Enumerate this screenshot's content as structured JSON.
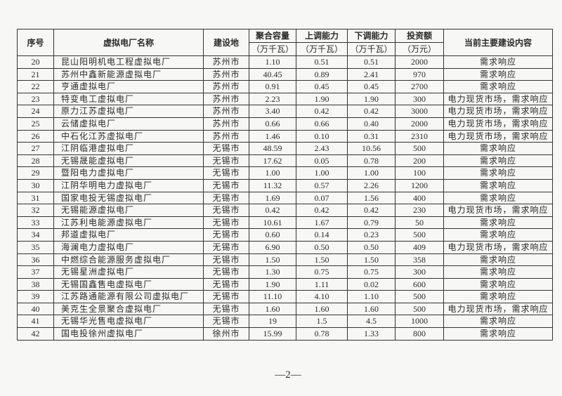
{
  "table": {
    "headers": {
      "no": "序号",
      "name": "虚拟电厂名称",
      "location": "建设地",
      "capacity": "聚合容量",
      "up": "上调能力",
      "down": "下调能力",
      "investment": "投资额",
      "content": "当前主要建设内容",
      "unit_mw": "（万千瓦）",
      "unit_yuan": "（万元）"
    },
    "rows": [
      [
        "20",
        "昆山阳明机电工程虚拟电厂",
        "苏州市",
        "1.10",
        "0.51",
        "0.51",
        "2000",
        "需求响应"
      ],
      [
        "21",
        "苏州中鑫新能源虚拟电厂",
        "苏州市",
        "40.45",
        "0.89",
        "2.41",
        "970",
        "需求响应"
      ],
      [
        "22",
        "亨通虚拟电厂",
        "苏州市",
        "0.91",
        "0.45",
        "0.45",
        "2700",
        "需求响应"
      ],
      [
        "23",
        "特变电工虚拟电厂",
        "苏州市",
        "2.23",
        "1.90",
        "1.90",
        "300",
        "电力现货市场，需求响应"
      ],
      [
        "24",
        "原力江苏虚拟电厂",
        "苏州市",
        "3.40",
        "0.42",
        "0.42",
        "3000",
        "电力现货市场，需求响应"
      ],
      [
        "25",
        "云储虚拟电厂",
        "苏州市",
        "0.66",
        "0.66",
        "0.40",
        "2000",
        "电力现货市场，需求响应"
      ],
      [
        "26",
        "中石化江苏虚拟电厂",
        "苏州市",
        "1.46",
        "0.10",
        "0.31",
        "2310",
        "电力现货市场，需求响应"
      ],
      [
        "27",
        "江阴临港虚拟电厂",
        "无锡市",
        "48.59",
        "2.43",
        "10.56",
        "500",
        "需求响应"
      ],
      [
        "28",
        "无锡晟能虚拟电厂",
        "无锡市",
        "17.62",
        "0.05",
        "0.78",
        "200",
        "需求响应"
      ],
      [
        "29",
        "暨阳电力虚拟电厂",
        "无锡市",
        "1.00",
        "1.00",
        "1.00",
        "100",
        "需求响应"
      ],
      [
        "30",
        "江阴华明电力虚拟电厂",
        "无锡市",
        "11.32",
        "0.57",
        "2.26",
        "1200",
        "需求响应"
      ],
      [
        "31",
        "国家电投无锡虚拟电厂",
        "无锡市",
        "1.69",
        "0.07",
        "1.56",
        "400",
        "需求响应"
      ],
      [
        "32",
        "无锡能源虚拟电厂",
        "无锡市",
        "0.42",
        "0.42",
        "0.42",
        "230",
        "电力现货市场，需求响应"
      ],
      [
        "33",
        "江苏利电能源虚拟电厂",
        "无锡市",
        "10.61",
        "1.67",
        "0.79",
        "50",
        "需求响应"
      ],
      [
        "34",
        "邦道虚拟电厂",
        "无锡市",
        "0.60",
        "0.14",
        "0.23",
        "500",
        "需求响应"
      ],
      [
        "35",
        "海澜电力虚拟电厂",
        "无锡市",
        "6.90",
        "0.50",
        "0.50",
        "409",
        "电力现货市场，需求响应"
      ],
      [
        "36",
        "中燃综合能源服务虚拟电厂",
        "无锡市",
        "1.50",
        "1.50",
        "1.50",
        "358",
        "需求响应"
      ],
      [
        "37",
        "无锡星洲虚拟电厂",
        "无锡市",
        "1.30",
        "0.75",
        "0.75",
        "300",
        "需求响应"
      ],
      [
        "38",
        "无锡国鑫售电虚拟电厂",
        "无锡市",
        "1.90",
        "1.11",
        "0.02",
        "600",
        "需求响应"
      ],
      [
        "39",
        "江苏路通能源有限公司虚拟电厂",
        "无锡市",
        "11.10",
        "4.10",
        "1.10",
        "500",
        "需求响应"
      ],
      [
        "40",
        "美克生全景聚合虚拟电厂",
        "无锡市",
        "1.60",
        "1.60",
        "1.60",
        "500",
        "电力现货市场，需求响应"
      ],
      [
        "41",
        "无锡华光售电虚拟电厂",
        "无锡市",
        "19",
        "1.5",
        "4.5",
        "1000",
        "需求响应"
      ],
      [
        "42",
        "国电投徐州虚拟电厂",
        "徐州市",
        "15.99",
        "0.78",
        "1.33",
        "800",
        "需求响应"
      ]
    ]
  },
  "page_number": "—2—"
}
